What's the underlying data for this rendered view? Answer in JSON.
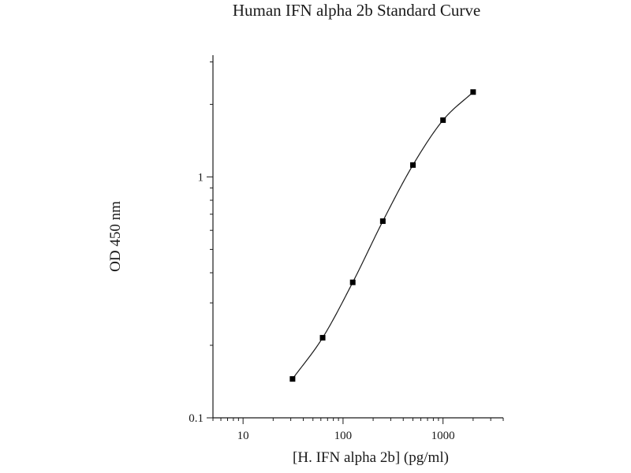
{
  "chart_data": {
    "type": "scatter",
    "title": "Human IFN alpha 2b Standard Curve",
    "xlabel": "[H. IFN alpha 2b] (pg/ml)",
    "ylabel": "OD 450 nm",
    "x_scale": "log",
    "y_scale": "log",
    "xlim": [
      5,
      4000
    ],
    "ylim": [
      0.1,
      3.2
    ],
    "x_ticks": [
      10,
      100,
      1000
    ],
    "x_tick_labels": [
      "10",
      "100",
      "1000"
    ],
    "y_ticks": [
      0.1,
      1
    ],
    "y_tick_labels": [
      "0.1",
      "1"
    ],
    "grid": false,
    "series": [
      {
        "x": [
          31.25,
          62.5,
          125,
          250,
          500,
          1000,
          2000
        ],
        "y": [
          0.145,
          0.215,
          0.365,
          0.655,
          1.12,
          1.72,
          2.25
        ],
        "marker": "square",
        "fit_line": true,
        "color": "#000000"
      }
    ]
  }
}
